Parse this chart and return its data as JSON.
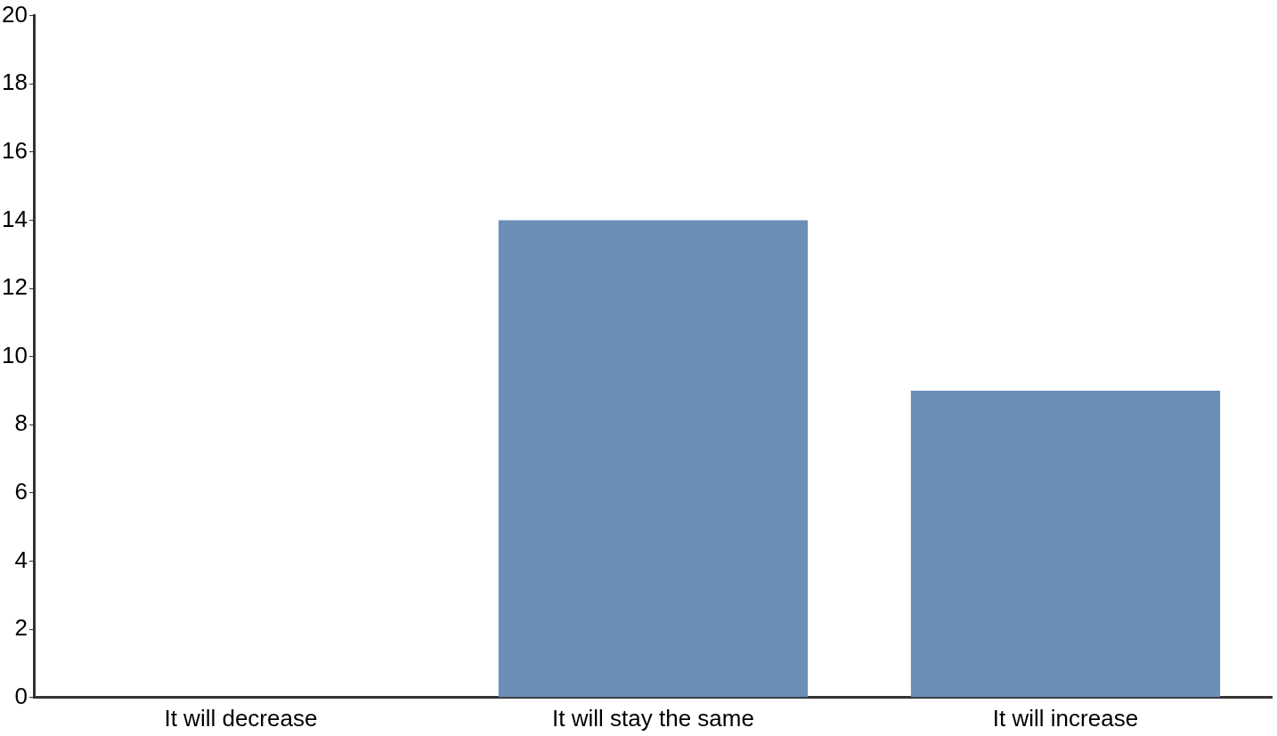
{
  "chart_data": {
    "type": "bar",
    "categories": [
      "It will decrease",
      "It will stay the same",
      "It will increase"
    ],
    "values": [
      0,
      14,
      9
    ],
    "color": "#6a8eb6",
    "ylim": [
      0,
      20
    ],
    "yticks": [
      0,
      2,
      4,
      6,
      8,
      10,
      12,
      14,
      16,
      18,
      20
    ],
    "grid": false,
    "legend": false
  }
}
